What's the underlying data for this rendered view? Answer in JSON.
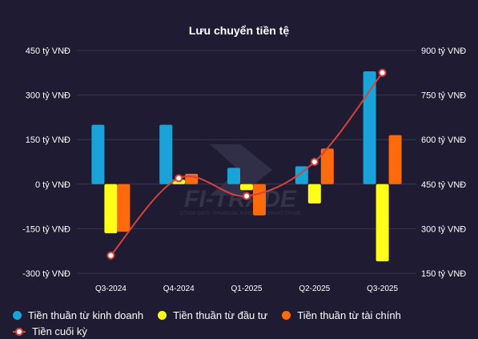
{
  "chart_data": {
    "type": "bar",
    "title": "Lưu chuyển tiền tệ",
    "categories": [
      "Q3-2024",
      "Q4-2024",
      "Q1-2025",
      "Q2-2025",
      "Q3-2025"
    ],
    "series": [
      {
        "name": "Tiền thuần từ kinh doanh",
        "type": "bar",
        "axis": "left",
        "color": "#1aa3d8",
        "values": [
          200,
          200,
          55,
          60,
          380
        ]
      },
      {
        "name": "Tiền thuần từ đầu tư",
        "type": "bar",
        "axis": "left",
        "color": "#ffff1a",
        "values": [
          -165,
          15,
          -20,
          -65,
          -260
        ]
      },
      {
        "name": "Tiền thuần từ tài chính",
        "type": "bar",
        "axis": "left",
        "color": "#ff6a0d",
        "values": [
          -160,
          35,
          -105,
          120,
          165
        ]
      },
      {
        "name": "Tiền cuối kỳ",
        "type": "line",
        "axis": "right",
        "color": "#d9413b",
        "values": [
          210,
          470,
          410,
          525,
          825
        ]
      }
    ],
    "yAxisLeft": {
      "min": -300,
      "max": 450,
      "ticks": [
        "450 tỷ VNĐ",
        "300 tỷ VNĐ",
        "150 tỷ VNĐ",
        "0 tỷ VNĐ",
        "-150 tỷ VNĐ",
        "-300 tỷ VNĐ"
      ]
    },
    "yAxisRight": {
      "min": 150,
      "max": 900,
      "ticks": [
        "900 tỷ VNĐ",
        "750 tỷ VNĐ",
        "600 tỷ VNĐ",
        "450 tỷ VNĐ",
        "300 tỷ VNĐ",
        "150 tỷ VNĐ"
      ]
    },
    "grid": true,
    "legend_position": "bottom-left",
    "watermark": {
      "main": "FI-TRADE",
      "sub": "STOCK DATA · FINANCIAL INSIGHTS · SMART TRADE"
    }
  },
  "colors": {
    "background": "#1e1b33",
    "grid": "#3a3654",
    "text": "#ffffff"
  }
}
